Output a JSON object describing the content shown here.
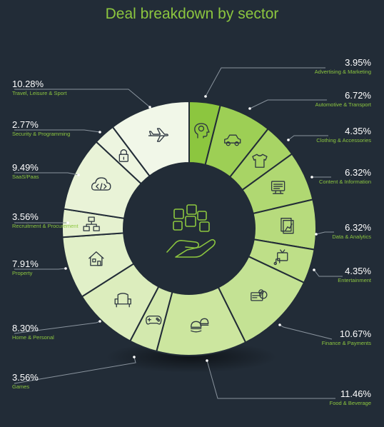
{
  "title": "Deal breakdown by sector",
  "chart_data": {
    "type": "pie",
    "title": "Deal breakdown by sector",
    "slices": [
      {
        "label": "Advertising & Marketing",
        "value": 3.95,
        "display": "3.95%",
        "color": "#8cc63f",
        "icon": "head-lightbulb-icon"
      },
      {
        "label": "Automotive & Transport",
        "value": 6.72,
        "display": "6.72%",
        "color": "#9dcf55",
        "icon": "car-icon"
      },
      {
        "label": "Clothing & Accessories",
        "value": 4.35,
        "display": "4.35%",
        "color": "#a8d465",
        "icon": "tshirt-icon"
      },
      {
        "label": "Content & Information",
        "value": 6.32,
        "display": "6.32%",
        "color": "#b0d872",
        "icon": "monitor-icon"
      },
      {
        "label": "Data & Analytics",
        "value": 6.32,
        "display": "6.32%",
        "color": "#b7db7d",
        "icon": "report-chart-icon"
      },
      {
        "label": "Entertainment",
        "value": 4.35,
        "display": "4.35%",
        "color": "#bedf88",
        "icon": "tv-music-icon"
      },
      {
        "label": "Finance & Payments",
        "value": 10.67,
        "display": "10.67%",
        "color": "#c4e294",
        "icon": "card-coin-icon"
      },
      {
        "label": "Food & Beverage",
        "value": 11.46,
        "display": "11.46%",
        "color": "#cce69f",
        "icon": "food-burger-icon"
      },
      {
        "label": "Games",
        "value": 3.56,
        "display": "3.56%",
        "color": "#d3e9ae",
        "icon": "gamepad-icon"
      },
      {
        "label": "Home & Personal",
        "value": 8.3,
        "display": "8.30%",
        "color": "#dcedbd",
        "icon": "armchair-icon"
      },
      {
        "label": "Property",
        "value": 7.91,
        "display": "7.91%",
        "color": "#e1f0c8",
        "icon": "house-icon"
      },
      {
        "label": "Recruitment & Procurement",
        "value": 3.56,
        "display": "3.56%",
        "color": "#e5f1cf",
        "icon": "org-people-icon"
      },
      {
        "label": "SaaS/Paas",
        "value": 9.49,
        "display": "9.49%",
        "color": "#e9f3d7",
        "icon": "cloud-code-icon"
      },
      {
        "label": "Security & Programming",
        "value": 2.77,
        "display": "2.77%",
        "color": "#edf5e0",
        "icon": "padlock-icon"
      },
      {
        "label": "Travel, Leisure & Sport",
        "value": 10.28,
        "display": "10.28%",
        "color": "#f1f7e8",
        "icon": "airplane-icon"
      }
    ],
    "center_icon": "hand-with-squares-icon",
    "legend": "callout labels around the ring"
  },
  "labels": {
    "advertising": {
      "pct": "3.95%",
      "name": "Advertising & Marketing"
    },
    "automotive": {
      "pct": "6.72%",
      "name": "Automotive & Transport"
    },
    "clothing": {
      "pct": "4.35%",
      "name": "Clothing & Accessories"
    },
    "content": {
      "pct": "6.32%",
      "name": "Content & Information"
    },
    "data": {
      "pct": "6.32%",
      "name": "Data & Analytics"
    },
    "entertainment": {
      "pct": "4.35%",
      "name": "Entertainment"
    },
    "finance": {
      "pct": "10.67%",
      "name": "Finance & Payments"
    },
    "food": {
      "pct": "11.46%",
      "name": "Food & Beverage"
    },
    "travel": {
      "pct": "10.28%",
      "name": "Travel, Leisure & Sport"
    },
    "security": {
      "pct": "2.77%",
      "name": "Security & Programming"
    },
    "saas": {
      "pct": "9.49%",
      "name": "SaaS/Paas"
    },
    "recruitment": {
      "pct": "3.56%",
      "name": "Recruitment & Procurement"
    },
    "property": {
      "pct": "7.91%",
      "name": "Property"
    },
    "home": {
      "pct": "8.30%",
      "name": "Home & Personal"
    },
    "games": {
      "pct": "3.56%",
      "name": "Games"
    }
  },
  "colors": {
    "background": "#222c37",
    "accent": "#8cc63f",
    "divider": "#222c37",
    "leader": "#8a949e",
    "icon": "#2d3640"
  }
}
